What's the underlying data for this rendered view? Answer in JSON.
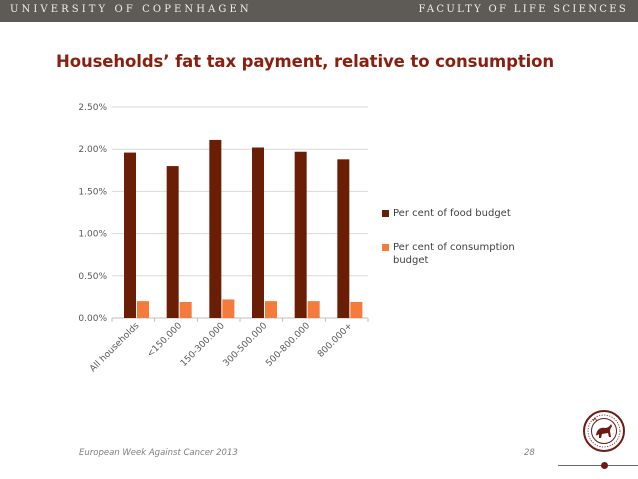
{
  "header": {
    "university": "UNIVERSITY OF COPENHAGEN",
    "faculty": "FACULTY OF LIFE SCIENCES"
  },
  "slide": {
    "title": "Households’ fat tax payment, relative to consumption"
  },
  "footer": {
    "event": "European Week Against Cancer 2013",
    "page_number": "28"
  },
  "colors": {
    "food_series": "#6b1e06",
    "consumption_series": "#f47b3c",
    "title": "#8a1f0f",
    "topbar": "#5e5b57"
  },
  "chart_data": {
    "type": "bar",
    "title": "",
    "xlabel": "",
    "ylabel": "",
    "ylim": [
      0,
      2.5
    ],
    "yticks": [
      0,
      0.5,
      1.0,
      1.5,
      2.0,
      2.5
    ],
    "ytick_labels": [
      "0.00%",
      "0.50%",
      "1.00%",
      "1.50%",
      "2.00%",
      "2.50%"
    ],
    "grid": true,
    "legend_position": "right",
    "categories": [
      "All households",
      "<150.000",
      "150-300.000",
      "300-500.000",
      "500-800.000",
      "800.000+"
    ],
    "series": [
      {
        "name": "Per cent of food budget",
        "values": [
          1.96,
          1.8,
          2.11,
          2.02,
          1.97,
          1.88
        ]
      },
      {
        "name": "Per cent of consumption budget",
        "values": [
          0.2,
          0.19,
          0.22,
          0.2,
          0.2,
          0.19
        ]
      }
    ]
  }
}
